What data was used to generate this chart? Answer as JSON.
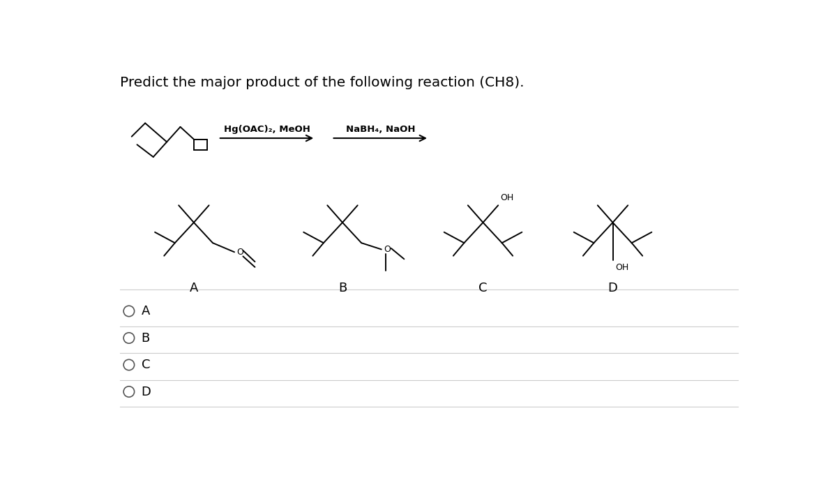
{
  "title": "Predict the major product of the following reaction (CH8).",
  "background_color": "#ffffff",
  "text_color": "#000000",
  "reagent1": "Hg(OAC)₂, MeOH",
  "reagent2": "NaBH₄, NaOH",
  "option_labels": [
    "A",
    "B",
    "C",
    "D"
  ]
}
